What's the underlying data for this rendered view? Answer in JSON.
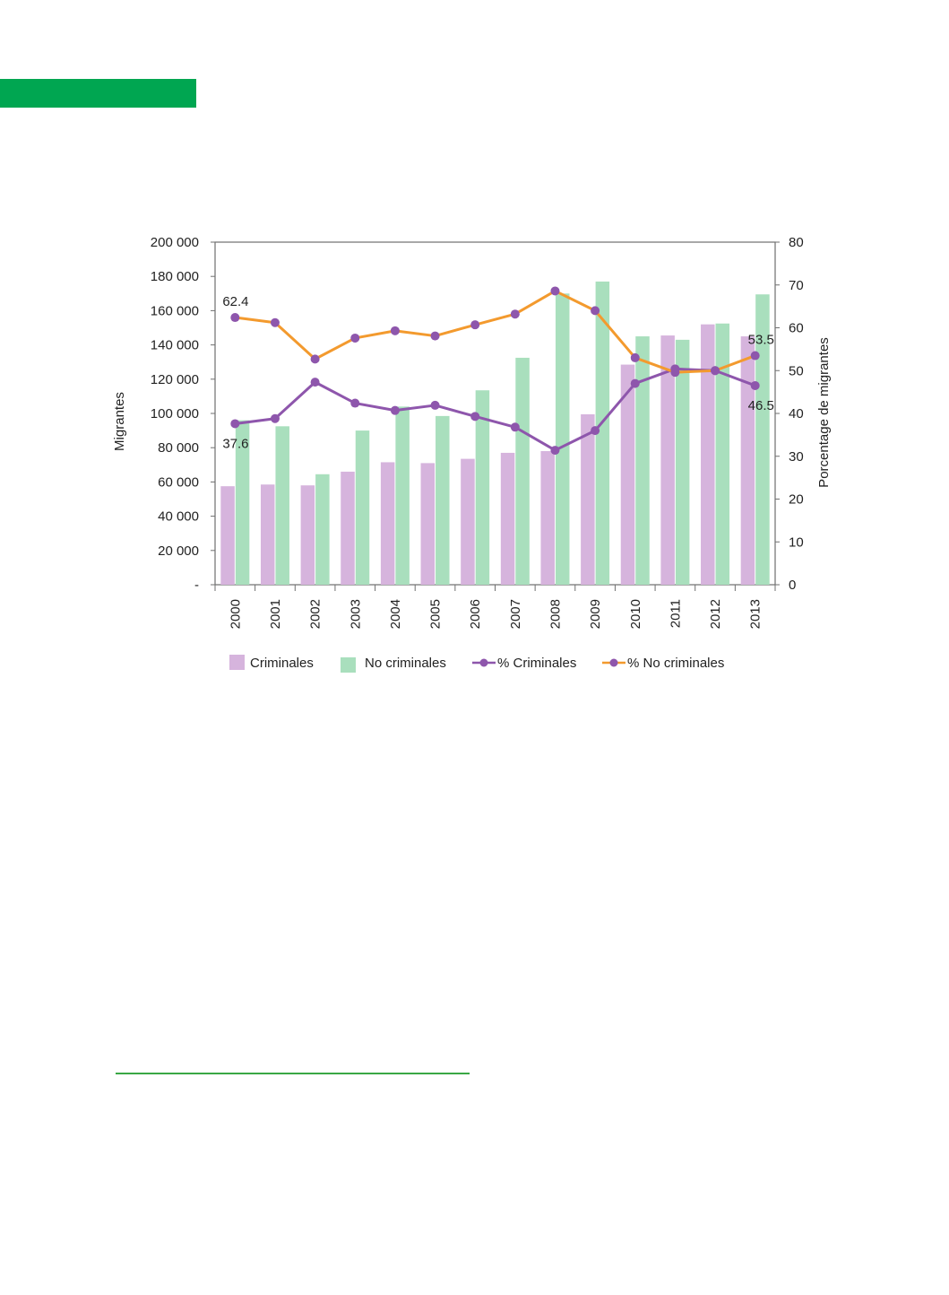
{
  "page": {
    "tab_color": "#00a651",
    "rule_color": "#3aa845"
  },
  "chart_data": {
    "type": "bar",
    "categories": [
      "2000",
      "2001",
      "2002",
      "2003",
      "2004",
      "2005",
      "2006",
      "2007",
      "2008",
      "2009",
      "2010",
      "2011",
      "2012",
      "2013"
    ],
    "series": [
      {
        "name": "Criminales",
        "kind": "bar",
        "axis": "left",
        "color": "#d6b4dd",
        "values": [
          57500,
          58500,
          58000,
          66000,
          71500,
          71000,
          73500,
          77000,
          78000,
          99500,
          128500,
          145500,
          152000,
          145000
        ]
      },
      {
        "name": "No criminales",
        "kind": "bar",
        "axis": "left",
        "color": "#a9dfbd",
        "values": [
          96000,
          92500,
          64500,
          90000,
          104000,
          98500,
          113500,
          132500,
          170000,
          177000,
          145000,
          143000,
          152500,
          169500
        ]
      },
      {
        "name": "% Criminales",
        "kind": "line",
        "axis": "right",
        "color": "#8e56ac",
        "values": [
          37.6,
          38.8,
          47.3,
          42.4,
          40.7,
          41.9,
          39.3,
          36.8,
          31.4,
          36.0,
          47.0,
          50.4,
          50.0,
          46.5
        ]
      },
      {
        "name": "% No criminales",
        "kind": "line",
        "axis": "right",
        "color": "#f39a2e",
        "values": [
          62.4,
          61.2,
          52.7,
          57.6,
          59.3,
          58.1,
          60.7,
          63.2,
          68.6,
          64.0,
          53.0,
          49.6,
          50.0,
          53.5
        ]
      }
    ],
    "ylabel": "Migrantes",
    "y2label": "Porcentage de migrantes",
    "ylim": [
      0,
      200000
    ],
    "y2lim": [
      0,
      80
    ],
    "yticks": [
      "-",
      "20 000",
      "40 000",
      "60 000",
      "80 000",
      "100 000",
      "120 000",
      "140 000",
      "160 000",
      "180 000",
      "200 000"
    ],
    "y2ticks": [
      "0",
      "10",
      "20",
      "30",
      "40",
      "50",
      "60",
      "70",
      "80"
    ],
    "annotations": [
      {
        "series": "% No criminales",
        "index": 0,
        "text": "62.4"
      },
      {
        "series": "% Criminales",
        "index": 0,
        "text": "37.6"
      },
      {
        "series": "% No criminales",
        "index": 13,
        "text": "53.5"
      },
      {
        "series": "% Criminales",
        "index": 13,
        "text": "46.5"
      }
    ],
    "legend": {
      "placement": "bottom",
      "items": [
        "Criminales",
        "No criminales",
        "% Criminales",
        "% No criminales"
      ]
    },
    "grid": false
  }
}
